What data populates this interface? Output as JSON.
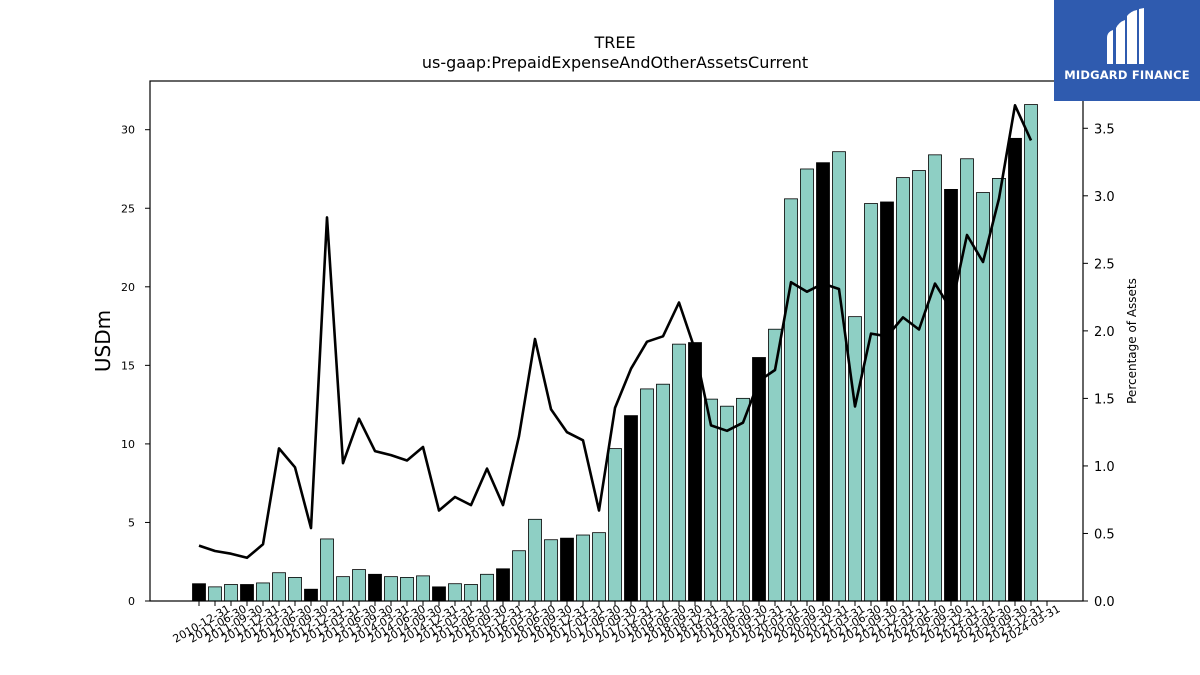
{
  "chart_data": {
    "type": "bar",
    "title": "TREE",
    "subtitle": "us-gaap:PrepaidExpenseAndOtherAssetsCurrent",
    "ylabel": "USDm",
    "y2label": "Percentage of Assets",
    "ylim": [
      0,
      33.1
    ],
    "y2lim": [
      0,
      3.85
    ],
    "yticks": [
      0,
      5,
      10,
      15,
      20,
      25,
      30
    ],
    "y2ticks": [
      "0.0",
      "0.5",
      "1.0",
      "1.5",
      "2.0",
      "2.5",
      "3.0",
      "3.5"
    ],
    "categories": [
      "2010-12-31",
      "2011-03-31",
      "2011-06-30",
      "2011-09-30",
      "2011-12-31",
      "2012-03-31",
      "2012-06-30",
      "2012-09-30",
      "2012-12-31",
      "2013-03-31",
      "2013-06-30",
      "2013-09-30",
      "2013-12-31",
      "2014-03-31",
      "2014-06-30",
      "2014-09-30",
      "2014-12-31",
      "2015-03-31",
      "2015-06-30",
      "2015-09-30",
      "2015-12-31",
      "2016-03-31",
      "2016-06-30",
      "2016-09-30",
      "2016-12-31",
      "2017-03-31",
      "2017-06-30",
      "2017-09-30",
      "2017-12-31",
      "2018-03-31",
      "2018-06-30",
      "2018-09-30",
      "2018-12-31",
      "2019-03-31",
      "2019-06-30",
      "2019-09-30",
      "2019-12-31",
      "2020-03-31",
      "2020-06-30",
      "2020-09-30",
      "2020-12-31",
      "2021-03-31",
      "2021-06-30",
      "2021-09-30",
      "2021-12-31",
      "2022-03-31",
      "2022-06-30",
      "2022-09-30",
      "2022-12-31",
      "2023-03-31",
      "2023-06-30",
      "2023-09-30",
      "2023-12-31",
      "2024-03-31"
    ],
    "tick_labels": [
      "2010-12-31",
      "2011-06-30",
      "2011-09-30",
      "2011-12-31",
      "2012-03-31",
      "2012-06-30",
      "2012-09-30",
      "2012-12-31",
      "2013-03-31",
      "2013-06-30",
      "2013-09-30",
      "2014-03-31",
      "2014-06-30",
      "2014-09-30",
      "2014-12-31",
      "2015-03-31",
      "2015-06-30",
      "2015-09-30",
      "2015-12-31",
      "2016-03-31",
      "2016-06-30",
      "2016-09-30",
      "2016-12-31",
      "2017-03-31",
      "2017-06-30",
      "2017-09-30",
      "2017-12-31",
      "2018-03-31",
      "2018-06-30",
      "2018-09-30",
      "2018-12-31",
      "2019-03-31",
      "2019-06-30",
      "2019-09-30",
      "2019-12-31",
      "2020-03-31",
      "2020-06-30",
      "2020-09-30",
      "2020-12-31",
      "2021-03-31",
      "2021-06-30",
      "2021-09-30",
      "2021-12-31",
      "2022-03-31",
      "2022-06-30",
      "2022-09-30",
      "2022-12-31",
      "2023-03-31",
      "2023-06-30",
      "2023-09-30",
      "2023-12-31",
      "2024-03-31"
    ],
    "series": [
      {
        "type": "bar",
        "values": [
          1.1,
          0.9,
          1.05,
          1.05,
          1.15,
          1.8,
          1.5,
          0.75,
          3.95,
          1.55,
          2.0,
          1.7,
          1.55,
          1.5,
          1.6,
          0.9,
          1.1,
          1.05,
          1.7,
          2.05,
          3.2,
          5.2,
          3.9,
          4.0,
          4.2,
          4.35,
          9.7,
          11.8,
          13.5,
          13.8,
          16.35,
          16.45,
          12.85,
          12.4,
          12.9,
          15.5,
          17.3,
          25.6,
          27.5,
          27.9,
          28.6,
          18.1,
          25.3,
          25.4,
          26.95,
          27.4,
          28.4,
          26.2,
          28.15,
          26.0,
          26.9,
          29.45,
          31.6,
          0
        ],
        "highlight": [
          1,
          0,
          0,
          1,
          0,
          0,
          0,
          1,
          0,
          0,
          0,
          1,
          0,
          0,
          0,
          1,
          0,
          0,
          0,
          1,
          0,
          0,
          0,
          1,
          0,
          0,
          0,
          1,
          0,
          0,
          0,
          1,
          0,
          0,
          0,
          1,
          0,
          0,
          0,
          1,
          0,
          0,
          0,
          1,
          0,
          0,
          0,
          1,
          0,
          0,
          0,
          1,
          0,
          0
        ]
      },
      {
        "type": "line",
        "axis": "right",
        "values": [
          0.41,
          0.37,
          0.35,
          0.32,
          0.42,
          1.13,
          0.99,
          0.54,
          2.84,
          1.02,
          1.35,
          1.11,
          1.08,
          1.04,
          1.14,
          0.67,
          0.77,
          0.71,
          0.98,
          0.71,
          1.22,
          1.94,
          1.42,
          1.25,
          1.19,
          0.67,
          1.43,
          1.72,
          1.92,
          1.96,
          2.21,
          1.86,
          1.3,
          1.26,
          1.32,
          1.63,
          1.71,
          2.36,
          2.29,
          2.35,
          2.31,
          1.44,
          1.98,
          1.96,
          2.1,
          2.01,
          2.35,
          2.16,
          2.71,
          2.51,
          2.98,
          3.67,
          3.41,
          null
        ]
      }
    ],
    "colors": {
      "bar": "#8ecfc4",
      "bar_highlight": "#000000",
      "line": "#000000"
    }
  },
  "logo": {
    "text": "MIDGARD FINANCE",
    "icon": "midgard-logo-icon",
    "background": "#2f5baf"
  }
}
